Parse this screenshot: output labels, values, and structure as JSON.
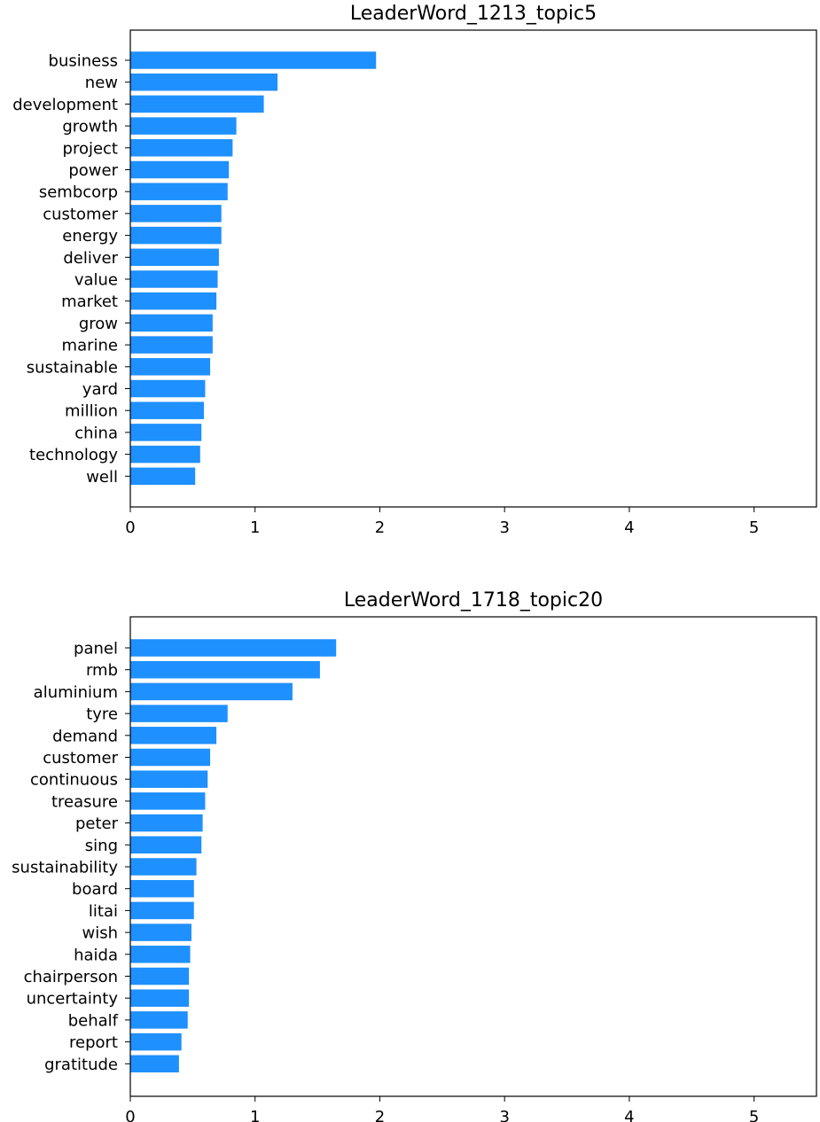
{
  "chart_data": [
    {
      "type": "bar",
      "orientation": "horizontal",
      "title": "LeaderWord_1213_topic5",
      "xlabel": "",
      "ylabel": "",
      "xlim": [
        0,
        5.5
      ],
      "xticks": [
        "0",
        "1",
        "2",
        "3",
        "4",
        "5"
      ],
      "grid": false,
      "bar_color": "#1e90ff",
      "categories": [
        "business",
        "new",
        "development",
        "growth",
        "project",
        "power",
        "sembcorp",
        "customer",
        "energy",
        "deliver",
        "value",
        "market",
        "grow",
        "marine",
        "sustainable",
        "yard",
        "million",
        "china",
        "technology",
        "well"
      ],
      "values": [
        1.97,
        1.18,
        1.07,
        0.85,
        0.82,
        0.79,
        0.78,
        0.73,
        0.73,
        0.71,
        0.7,
        0.69,
        0.66,
        0.66,
        0.64,
        0.6,
        0.59,
        0.57,
        0.56,
        0.52
      ]
    },
    {
      "type": "bar",
      "orientation": "horizontal",
      "title": "LeaderWord_1718_topic20",
      "xlabel": "",
      "ylabel": "",
      "xlim": [
        0,
        5.5
      ],
      "xticks": [
        "0",
        "1",
        "2",
        "3",
        "4",
        "5"
      ],
      "grid": false,
      "bar_color": "#1e90ff",
      "categories": [
        "panel",
        "rmb",
        "aluminium",
        "tyre",
        "demand",
        "customer",
        "continuous",
        "treasure",
        "peter",
        "sing",
        "sustainability",
        "board",
        "litai",
        "wish",
        "haida",
        "chairperson",
        "uncertainty",
        "behalf",
        "report",
        "gratitude"
      ],
      "values": [
        1.65,
        1.52,
        1.3,
        0.78,
        0.69,
        0.64,
        0.62,
        0.6,
        0.58,
        0.57,
        0.53,
        0.51,
        0.51,
        0.49,
        0.48,
        0.47,
        0.47,
        0.46,
        0.41,
        0.39
      ]
    }
  ]
}
